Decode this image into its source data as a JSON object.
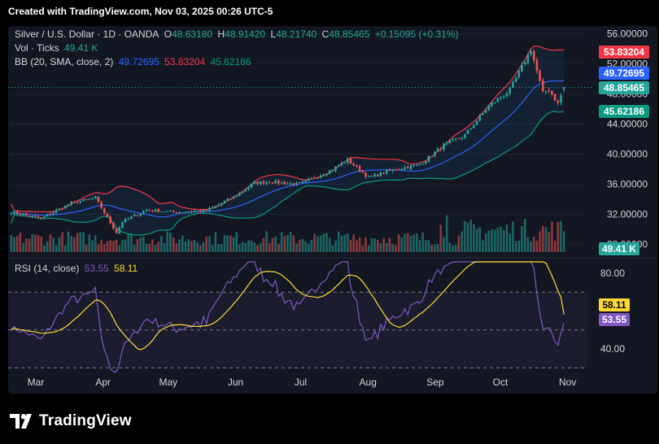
{
  "header": {
    "title": "Created with TradingView.com, Nov 03, 2025 00:26 UTC-5"
  },
  "legend": {
    "symbol": "Silver / U.S. Dollar · 1D · OANDA",
    "o_label": "O",
    "o_value": "48.63180",
    "h_label": "H",
    "h_value": "48.91420",
    "l_label": "L",
    "l_value": "48.21740",
    "c_label": "C",
    "c_value": "48.85465",
    "change": "+0.15095 (+0.31%)",
    "vol_label": "Vol · Ticks",
    "vol_value": "49.41 K",
    "bb_label": "BB (20, SMA, close, 2)",
    "bb_mid": "49.72695",
    "bb_upper": "53.83204",
    "bb_lower": "45.62186",
    "rsi_label": "RSI (14, close)",
    "rsi_value": "53.55",
    "rsi_ma": "58.11"
  },
  "badges": {
    "bb_upper": "53.83204",
    "bb_mid": "49.72695",
    "last_price": "48.85465",
    "bb_lower": "45.62186",
    "volume": "49.41 K",
    "rsi_ma": "58.11",
    "rsi": "53.55"
  },
  "footer": {
    "brand": "TradingView"
  },
  "colors": {
    "up": "#26a69a",
    "down": "#ef5350",
    "bb_basis": "#2962ff",
    "bb_upper": "#f23645",
    "bb_lower": "#089981",
    "rsi": "#7e57c2",
    "rsi_ma": "#fdd835",
    "axis_text": "#d1d4dc"
  },
  "chart_data": [
    {
      "type": "candlestick",
      "panel": "price",
      "x_labels": [
        "Mar",
        "Apr",
        "May",
        "Jun",
        "Jul",
        "Aug",
        "Sep",
        "Oct",
        "Nov"
      ],
      "y_ticks": [
        "56.00000",
        "52.00000",
        "48.00000",
        "44.00000",
        "40.00000",
        "36.00000",
        "32.00000",
        "28.00000"
      ],
      "ylim": [
        27,
        57
      ],
      "approx_close_path": [
        {
          "date": "2025-02-17",
          "value": 32.3
        },
        {
          "date": "2025-03-03",
          "value": 31.5
        },
        {
          "date": "2025-03-17",
          "value": 33.5
        },
        {
          "date": "2025-03-28",
          "value": 34.2
        },
        {
          "date": "2025-04-07",
          "value": 29.6
        },
        {
          "date": "2025-04-10",
          "value": 31.0
        },
        {
          "date": "2025-04-21",
          "value": 32.6
        },
        {
          "date": "2025-05-05",
          "value": 32.3
        },
        {
          "date": "2025-05-19",
          "value": 32.5
        },
        {
          "date": "2025-06-02",
          "value": 34.5
        },
        {
          "date": "2025-06-09",
          "value": 36.2
        },
        {
          "date": "2025-06-16",
          "value": 36.3
        },
        {
          "date": "2025-06-30",
          "value": 36.0
        },
        {
          "date": "2025-07-14",
          "value": 37.8
        },
        {
          "date": "2025-07-23",
          "value": 39.2
        },
        {
          "date": "2025-08-01",
          "value": 36.9
        },
        {
          "date": "2025-08-14",
          "value": 38.0
        },
        {
          "date": "2025-08-25",
          "value": 38.6
        },
        {
          "date": "2025-09-05",
          "value": 41.2
        },
        {
          "date": "2025-09-15",
          "value": 42.5
        },
        {
          "date": "2025-09-26",
          "value": 46.4
        },
        {
          "date": "2025-10-06",
          "value": 48.5
        },
        {
          "date": "2025-10-16",
          "value": 53.9
        },
        {
          "date": "2025-10-21",
          "value": 48.1
        },
        {
          "date": "2025-10-24",
          "value": 48.6
        },
        {
          "date": "2025-10-28",
          "value": 46.7
        },
        {
          "date": "2025-10-31",
          "value": 48.85
        }
      ],
      "last": {
        "open": 48.6318,
        "high": 48.9142,
        "low": 48.2174,
        "close": 48.85465
      },
      "bollinger": {
        "upper": 53.83204,
        "basis": 49.72695,
        "lower": 45.62186
      }
    },
    {
      "type": "bar",
      "panel": "volume",
      "last_value": "49.41 K"
    },
    {
      "type": "line",
      "panel": "rsi",
      "y_ticks": [
        "80.00",
        "40.00"
      ],
      "ylim": [
        28,
        86
      ],
      "bands": [
        70,
        50,
        30
      ],
      "series": [
        {
          "name": "RSI (14, close)",
          "last": 53.55
        },
        {
          "name": "RSI MA",
          "last": 58.11
        }
      ]
    }
  ]
}
